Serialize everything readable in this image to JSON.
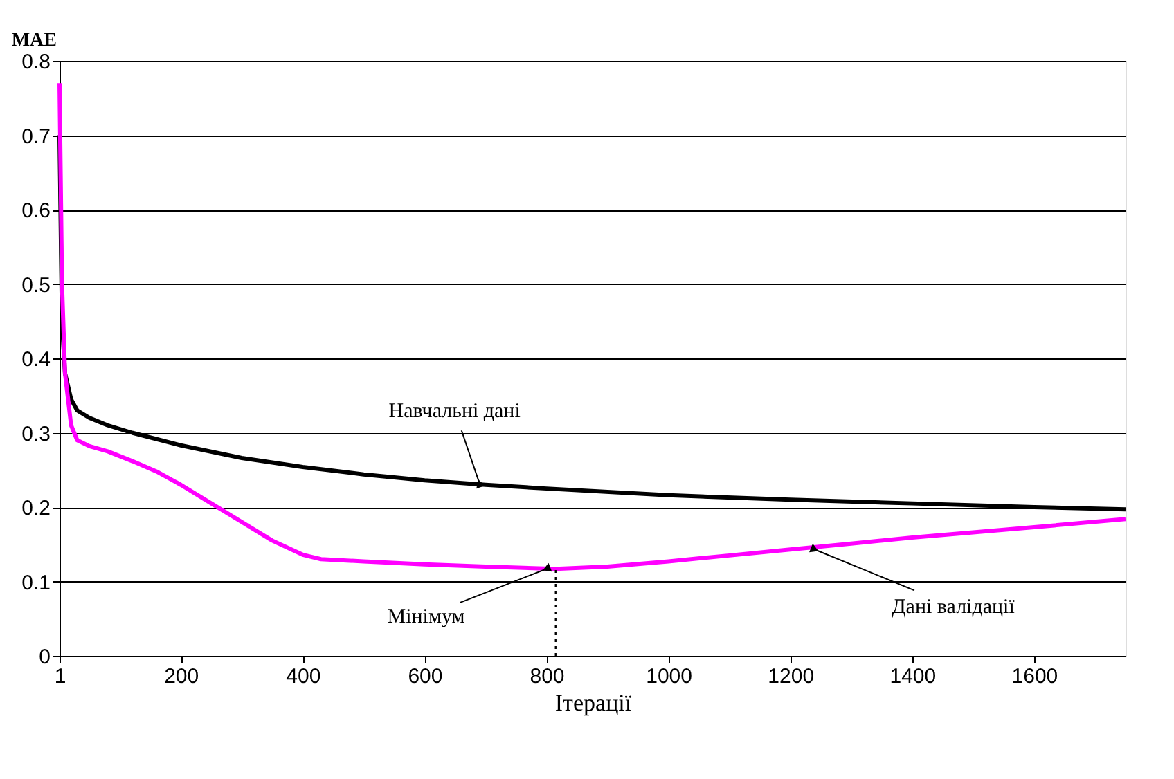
{
  "chart_data": {
    "type": "line",
    "ylabel": "MAE",
    "xlabel": "Ітерації",
    "xlim": [
      1,
      1750
    ],
    "xticks": [
      1,
      200,
      400,
      600,
      800,
      1000,
      1200,
      1400,
      1600
    ],
    "ylim": [
      0,
      0.8
    ],
    "yticks": [
      0,
      0.1,
      0.2,
      0.3,
      0.4,
      0.5,
      0.6,
      0.7,
      0.8
    ],
    "grid": "y",
    "marker": "none",
    "line_style": "solid",
    "series": [
      {
        "color": "#000000",
        "x": [
          1,
          5,
          10,
          20,
          30,
          50,
          80,
          120,
          200,
          300,
          400,
          500,
          600,
          700,
          800,
          1000,
          1200,
          1400,
          1600,
          1750
        ],
        "values": [
          0.7,
          0.45,
          0.38,
          0.345,
          0.33,
          0.32,
          0.31,
          0.3,
          0.283,
          0.266,
          0.254,
          0.244,
          0.236,
          0.23,
          0.225,
          0.216,
          0.21,
          0.205,
          0.2,
          0.197
        ]
      },
      {
        "color": "#ff00ff",
        "x": [
          1,
          5,
          10,
          20,
          30,
          50,
          80,
          120,
          160,
          200,
          250,
          300,
          350,
          400,
          430,
          500,
          600,
          700,
          815,
          900,
          1000,
          1100,
          1200,
          1300,
          1400,
          1500,
          1600,
          1750
        ],
        "values": [
          0.77,
          0.5,
          0.38,
          0.31,
          0.29,
          0.282,
          0.275,
          0.262,
          0.248,
          0.23,
          0.205,
          0.18,
          0.155,
          0.136,
          0.13,
          0.127,
          0.123,
          0.12,
          0.117,
          0.12,
          0.127,
          0.135,
          0.143,
          0.151,
          0.159,
          0.166,
          0.173,
          0.184
        ]
      }
    ],
    "ref_lines": [
      {
        "axis": "x",
        "value": 815,
        "line_style": "dotted",
        "color": "#000000"
      }
    ],
    "annotations": [
      {
        "text": "Навчальні дані",
        "x": 690,
        "y": 0.232
      },
      {
        "text": "Мінімум",
        "x": 800,
        "y": 0.117
      },
      {
        "text": "Дані валідації",
        "x": 1240,
        "y": 0.143
      }
    ]
  }
}
